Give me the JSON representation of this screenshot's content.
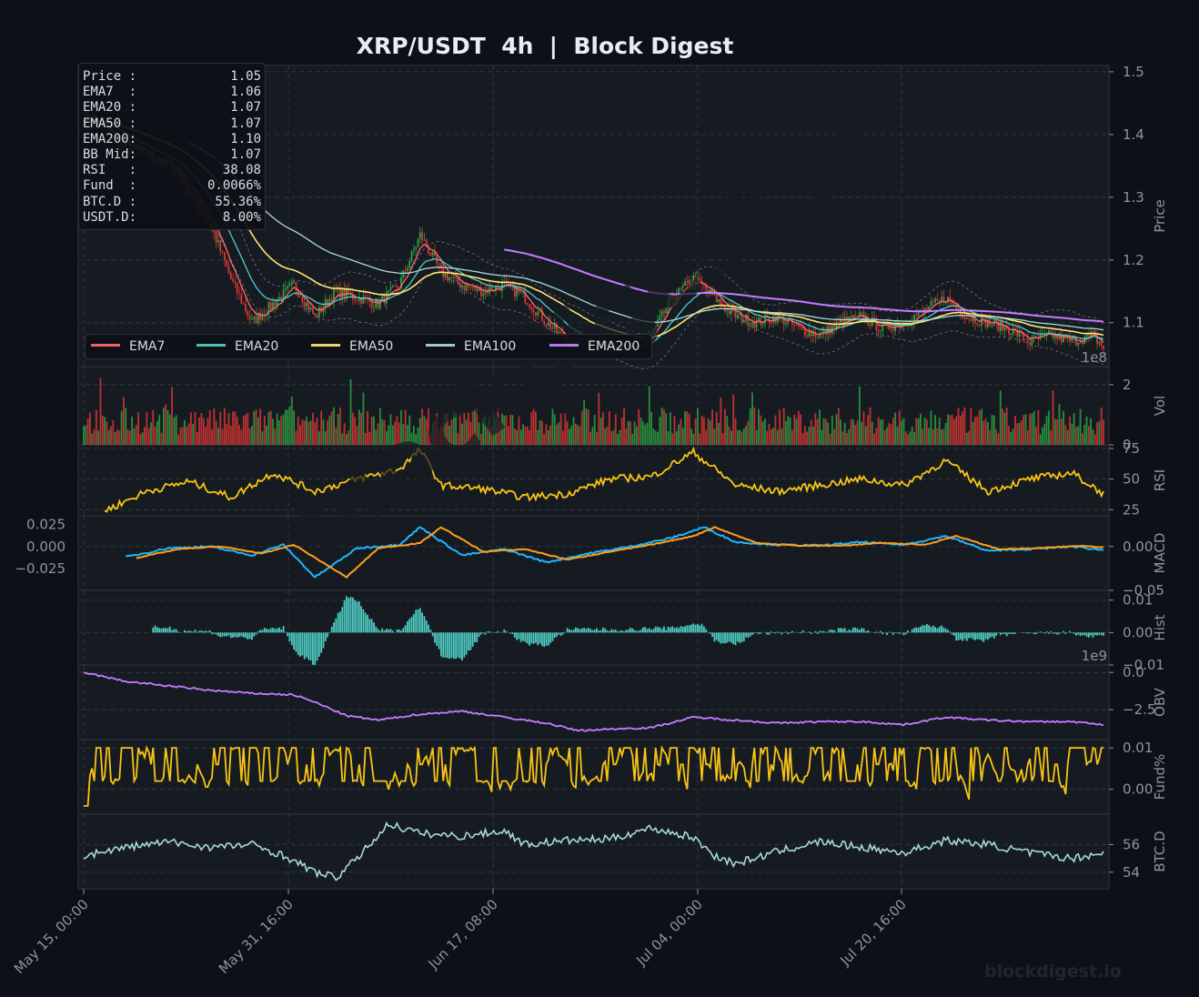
{
  "title": "XRP/USDT  4h  |  Block Digest",
  "watermark": "blockdigest.io",
  "colors": {
    "background": "#0d1117",
    "panel": "#161b22",
    "grid": "#30363d",
    "up": "#2ea043",
    "down": "#da3633",
    "ema7": "#ff6b6b",
    "ema20": "#4ecdc4",
    "ema50": "#ffe66d",
    "ema100": "#a8dadc",
    "ema200": "#c77dff",
    "rsi": "#f9c513",
    "macd": "#1fb6ff",
    "signal": "#ff9f1c",
    "hist": "#4ecdc4",
    "obv": "#c77dff",
    "funding": "#f9c513",
    "btcd": "#a8dadc"
  },
  "info_box": [
    {
      "label": "Price :",
      "value": "1.05"
    },
    {
      "label": "EMA7  :",
      "value": "1.06"
    },
    {
      "label": "EMA20 :",
      "value": "1.07"
    },
    {
      "label": "EMA50 :",
      "value": "1.07"
    },
    {
      "label": "EMA200:",
      "value": "1.10"
    },
    {
      "label": "BB Mid:",
      "value": "1.07"
    },
    {
      "label": "RSI   :",
      "value": "38.08"
    },
    {
      "label": "Fund  :",
      "value": "0.0066%"
    },
    {
      "label": "BTC.D :",
      "value": "55.36%"
    },
    {
      "label": "USDT.D:",
      "value": "8.00%"
    }
  ],
  "legend": [
    "EMA7",
    "EMA20",
    "EMA50",
    "EMA100",
    "EMA200"
  ],
  "chart_data": {
    "type": "line",
    "x_ticks": [
      "May 15, 00:00",
      "May 31, 16:00",
      "Jun 17, 08:00",
      "Jul 04, 00:00",
      "Jul 20, 16:00"
    ],
    "panels": [
      {
        "key": "price",
        "ylabel": "Price",
        "ylim": [
          1.03,
          1.51
        ],
        "ticks": [
          "1.1",
          "1.2",
          "1.3",
          "1.4",
          "1.5"
        ],
        "tick_values": [
          1.1,
          1.2,
          1.3,
          1.4,
          1.5
        ],
        "offset_text": "1e8"
      },
      {
        "key": "vol",
        "ylabel": "Vol",
        "ylim": [
          0,
          2.6
        ],
        "ticks": [
          "0",
          "2"
        ],
        "tick_values": [
          0,
          2
        ]
      },
      {
        "key": "rsi",
        "ylabel": "RSI",
        "ylim": [
          20,
          78
        ],
        "ticks": [
          "25",
          "50",
          "75"
        ],
        "tick_values": [
          25,
          50,
          75
        ]
      },
      {
        "key": "macd",
        "ylabel": "MACD",
        "ylim": [
          -0.05,
          0.035
        ],
        "ticks": [
          "0.00",
          "−0.05"
        ],
        "tick_values": [
          0,
          -0.05
        ],
        "left_ticks": [
          "0.025",
          "0.000",
          "−0.025"
        ],
        "left_tick_values": [
          0.025,
          0,
          -0.025
        ]
      },
      {
        "key": "hist",
        "ylabel": "Hist",
        "ylim": [
          -0.01,
          0.013
        ],
        "ticks": [
          "0.01",
          "0.00",
          "−0.01"
        ],
        "tick_values": [
          0.01,
          0,
          -0.01
        ],
        "offset_text": "1e9"
      },
      {
        "key": "obv",
        "ylabel": "OBV",
        "ylim": [
          -4.5,
          0.5
        ],
        "ticks": [
          "0.0",
          "−2.5"
        ],
        "tick_values": [
          0,
          -2.5
        ]
      },
      {
        "key": "fund",
        "ylabel": "Fund%",
        "ylim": [
          -0.006,
          0.012
        ],
        "ticks": [
          "0.01",
          "0.00"
        ],
        "tick_values": [
          0.01,
          0.0
        ]
      },
      {
        "key": "btcd",
        "ylabel": "BTC.D",
        "ylim": [
          52.8,
          58.2
        ],
        "ticks": [
          "56",
          "54"
        ],
        "tick_values": [
          56,
          54
        ]
      }
    ],
    "price_anchors": [
      [
        0,
        1.43
      ],
      [
        10,
        1.41
      ],
      [
        20,
        1.38
      ],
      [
        35,
        1.36
      ],
      [
        45,
        1.34
      ],
      [
        50,
        1.31
      ],
      [
        60,
        1.26
      ],
      [
        70,
        1.17
      ],
      [
        80,
        1.1
      ],
      [
        90,
        1.13
      ],
      [
        100,
        1.16
      ],
      [
        110,
        1.11
      ],
      [
        120,
        1.15
      ],
      [
        130,
        1.14
      ],
      [
        140,
        1.13
      ],
      [
        150,
        1.16
      ],
      [
        160,
        1.24
      ],
      [
        170,
        1.18
      ],
      [
        180,
        1.16
      ],
      [
        190,
        1.15
      ],
      [
        200,
        1.16
      ],
      [
        210,
        1.14
      ],
      [
        220,
        1.1
      ],
      [
        230,
        1.07
      ],
      [
        240,
        1.06
      ],
      [
        250,
        1.07
      ],
      [
        260,
        1.05
      ],
      [
        270,
        1.08
      ],
      [
        280,
        1.14
      ],
      [
        290,
        1.17
      ],
      [
        300,
        1.14
      ],
      [
        310,
        1.11
      ],
      [
        320,
        1.1
      ],
      [
        330,
        1.11
      ],
      [
        340,
        1.09
      ],
      [
        350,
        1.08
      ],
      [
        360,
        1.1
      ],
      [
        370,
        1.11
      ],
      [
        380,
        1.09
      ],
      [
        390,
        1.1
      ],
      [
        400,
        1.12
      ],
      [
        410,
        1.14
      ],
      [
        420,
        1.11
      ],
      [
        430,
        1.1
      ],
      [
        440,
        1.09
      ],
      [
        450,
        1.07
      ],
      [
        460,
        1.08
      ],
      [
        470,
        1.07
      ],
      [
        480,
        1.08
      ],
      [
        485,
        1.06
      ]
    ],
    "rsi_anchors": [
      [
        10,
        24
      ],
      [
        30,
        40
      ],
      [
        50,
        48
      ],
      [
        70,
        35
      ],
      [
        90,
        55
      ],
      [
        110,
        40
      ],
      [
        130,
        50
      ],
      [
        150,
        58
      ],
      [
        160,
        74
      ],
      [
        170,
        45
      ],
      [
        190,
        42
      ],
      [
        210,
        35
      ],
      [
        230,
        38
      ],
      [
        250,
        50
      ],
      [
        270,
        52
      ],
      [
        290,
        72
      ],
      [
        310,
        45
      ],
      [
        330,
        40
      ],
      [
        350,
        45
      ],
      [
        370,
        50
      ],
      [
        390,
        45
      ],
      [
        410,
        65
      ],
      [
        430,
        40
      ],
      [
        450,
        50
      ],
      [
        470,
        55
      ],
      [
        485,
        38
      ]
    ],
    "macd_anchors": [
      [
        20,
        -0.012
      ],
      [
        40,
        -0.002
      ],
      [
        60,
        0.0
      ],
      [
        80,
        -0.01
      ],
      [
        95,
        0.002
      ],
      [
        110,
        -0.035
      ],
      [
        130,
        -0.002
      ],
      [
        150,
        0.002
      ],
      [
        160,
        0.022
      ],
      [
        180,
        -0.01
      ],
      [
        200,
        -0.003
      ],
      [
        220,
        -0.018
      ],
      [
        240,
        -0.008
      ],
      [
        260,
        0.0
      ],
      [
        280,
        0.01
      ],
      [
        295,
        0.022
      ],
      [
        310,
        0.005
      ],
      [
        330,
        0.002
      ],
      [
        350,
        0.001
      ],
      [
        370,
        0.005
      ],
      [
        390,
        0.002
      ],
      [
        410,
        0.012
      ],
      [
        430,
        -0.005
      ],
      [
        450,
        -0.003
      ],
      [
        470,
        0.0
      ],
      [
        485,
        -0.004
      ]
    ],
    "signal_anchors": [
      [
        25,
        -0.013
      ],
      [
        45,
        -0.003
      ],
      [
        65,
        0.0
      ],
      [
        85,
        -0.008
      ],
      [
        100,
        0.002
      ],
      [
        125,
        -0.035
      ],
      [
        140,
        -0.002
      ],
      [
        160,
        0.004
      ],
      [
        170,
        0.022
      ],
      [
        190,
        -0.006
      ],
      [
        210,
        -0.003
      ],
      [
        230,
        -0.015
      ],
      [
        250,
        -0.006
      ],
      [
        270,
        0.002
      ],
      [
        290,
        0.012
      ],
      [
        300,
        0.022
      ],
      [
        320,
        0.004
      ],
      [
        340,
        0.001
      ],
      [
        360,
        0.001
      ],
      [
        380,
        0.004
      ],
      [
        400,
        0.002
      ],
      [
        415,
        0.012
      ],
      [
        435,
        -0.003
      ],
      [
        455,
        -0.002
      ],
      [
        475,
        0.001
      ],
      [
        485,
        -0.001
      ]
    ],
    "obv_anchors": [
      [
        0,
        0.0
      ],
      [
        20,
        -0.6
      ],
      [
        40,
        -0.9
      ],
      [
        60,
        -1.2
      ],
      [
        80,
        -1.4
      ],
      [
        100,
        -1.5
      ],
      [
        110,
        -2.0
      ],
      [
        125,
        -2.9
      ],
      [
        140,
        -3.2
      ],
      [
        160,
        -2.8
      ],
      [
        180,
        -2.6
      ],
      [
        200,
        -3.0
      ],
      [
        220,
        -3.4
      ],
      [
        235,
        -3.9
      ],
      [
        250,
        -3.8
      ],
      [
        270,
        -3.7
      ],
      [
        290,
        -3.0
      ],
      [
        310,
        -3.2
      ],
      [
        330,
        -3.4
      ],
      [
        350,
        -3.3
      ],
      [
        370,
        -3.3
      ],
      [
        390,
        -3.5
      ],
      [
        410,
        -3.0
      ],
      [
        430,
        -3.2
      ],
      [
        450,
        -3.3
      ],
      [
        470,
        -3.3
      ],
      [
        485,
        -3.5
      ]
    ],
    "btcd_anchors": [
      [
        0,
        55.2
      ],
      [
        20,
        55.8
      ],
      [
        40,
        56.2
      ],
      [
        60,
        55.8
      ],
      [
        80,
        56.0
      ],
      [
        95,
        55.2
      ],
      [
        110,
        54.0
      ],
      [
        120,
        53.6
      ],
      [
        130,
        55.0
      ],
      [
        145,
        57.5
      ],
      [
        160,
        56.8
      ],
      [
        180,
        56.6
      ],
      [
        200,
        57.0
      ],
      [
        210,
        56.0
      ],
      [
        230,
        56.3
      ],
      [
        250,
        56.4
      ],
      [
        270,
        57.2
      ],
      [
        290,
        56.5
      ],
      [
        300,
        55.2
      ],
      [
        310,
        54.6
      ],
      [
        330,
        55.5
      ],
      [
        350,
        56.2
      ],
      [
        370,
        55.8
      ],
      [
        390,
        55.4
      ],
      [
        410,
        56.3
      ],
      [
        430,
        56.0
      ],
      [
        450,
        55.4
      ],
      [
        470,
        55.0
      ],
      [
        485,
        55.4
      ]
    ]
  }
}
